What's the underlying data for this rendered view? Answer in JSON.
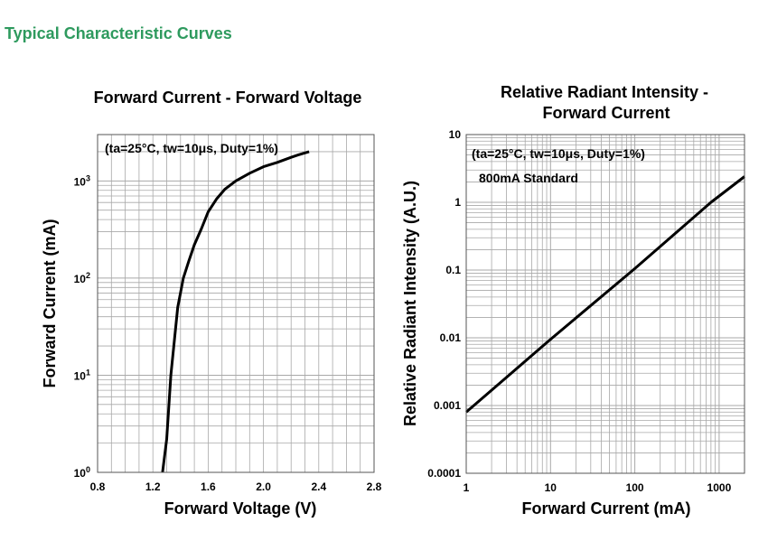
{
  "heading": "Typical Characteristic Curves",
  "colors": {
    "heading": "#2e9a5e",
    "grid": "#a8a8a8",
    "frame": "#555555",
    "curve": "#000000",
    "text": "#000000"
  },
  "chart_data": [
    {
      "type": "line",
      "title": "Forward Current - Forward Voltage",
      "annotation": "(ta=25°C, tw=10μs, Duty=1%)",
      "xlabel": "Forward Voltage (V)",
      "ylabel": "Forward Current (mA)",
      "xscale": "linear",
      "yscale": "log",
      "xlim": [
        0.8,
        2.8
      ],
      "ylim": [
        1,
        3000
      ],
      "xticks": [
        0.8,
        1.2,
        1.6,
        2.0,
        2.4,
        2.8
      ],
      "xtick_labels": [
        "0.8",
        "1.2",
        "1.6",
        "2.0",
        "2.4",
        "2.8"
      ],
      "yticks": [
        1,
        10,
        100,
        1000
      ],
      "ytick_labels": [
        {
          "base": "10",
          "exp": "0"
        },
        {
          "base": "10",
          "exp": "1"
        },
        {
          "base": "10",
          "exp": "2"
        },
        {
          "base": "10",
          "exp": "3"
        }
      ],
      "grid": true,
      "series": [
        {
          "x": [
            1.27,
            1.3,
            1.33,
            1.38,
            1.42,
            1.46,
            1.5,
            1.55,
            1.6,
            1.66,
            1.72,
            1.8,
            1.9,
            2.0,
            2.1,
            2.2,
            2.25,
            2.33
          ],
          "y": [
            1,
            2.2,
            10,
            50,
            100,
            150,
            220,
            320,
            480,
            650,
            820,
            1000,
            1200,
            1400,
            1550,
            1750,
            1850,
            2000
          ]
        }
      ]
    },
    {
      "type": "line",
      "title": "Relative Radiant Intensity - Forward Current",
      "title_lines": [
        "Relative Radiant Intensity -",
        "Forward Current"
      ],
      "annotation": "(ta=25°C, tw=10μs, Duty=1%)",
      "annotation2": "800mA Standard",
      "xlabel": "Forward Current (mA)",
      "ylabel": "Relative Radiant Intensity (A.U.)",
      "xscale": "log",
      "yscale": "log",
      "xlim": [
        1,
        2000
      ],
      "ylim": [
        0.0001,
        10
      ],
      "xticks": [
        1,
        10,
        100,
        1000
      ],
      "xtick_labels": [
        "1",
        "10",
        "100",
        "1000"
      ],
      "yticks": [
        0.0001,
        0.001,
        0.01,
        0.1,
        1,
        10
      ],
      "ytick_labels": [
        "0.0001",
        "0.001",
        "0.01",
        "0.1",
        "1",
        "10"
      ],
      "grid": true,
      "series": [
        {
          "x": [
            1,
            3,
            10,
            100,
            800,
            2000
          ],
          "y": [
            0.0008,
            0.0026,
            0.0095,
            0.105,
            1,
            2.4
          ]
        }
      ]
    }
  ]
}
